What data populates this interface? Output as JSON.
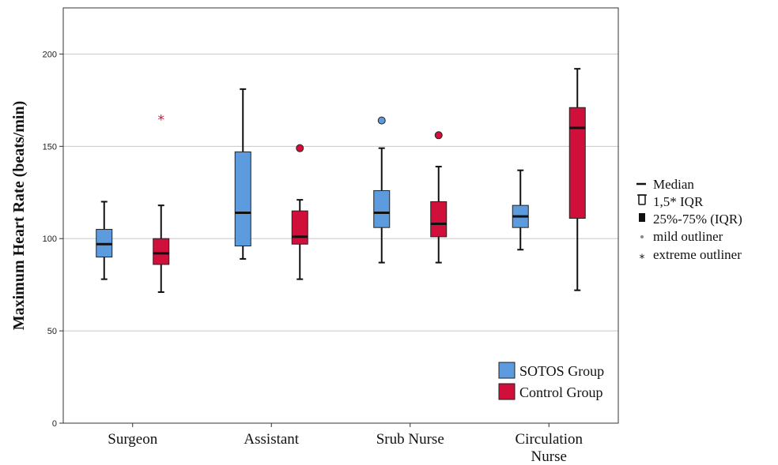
{
  "chart_data": {
    "type": "boxplot",
    "ylabel": "Maximum Heart Rate (beats/min)",
    "ylim": [
      0,
      225
    ],
    "yticks": [
      0,
      50,
      100,
      150,
      200
    ],
    "grid": "horizontal",
    "categories": [
      "Surgeon",
      "Assistant",
      "Srub Nurse",
      "Circulation Nurse"
    ],
    "category_lines": [
      [
        "Surgeon"
      ],
      [
        "Assistant"
      ],
      [
        "Srub Nurse"
      ],
      [
        "Circulation",
        "Nurse"
      ]
    ],
    "series": [
      {
        "name": "SOTOS Group",
        "color": "#5b9bde",
        "boxes": [
          {
            "whisker_low": 78,
            "q1": 90,
            "median": 97,
            "q3": 105,
            "whisker_high": 120,
            "mild_outliers": [],
            "extreme_outliers": []
          },
          {
            "whisker_low": 89,
            "q1": 96,
            "median": 114,
            "q3": 147,
            "whisker_high": 181,
            "mild_outliers": [],
            "extreme_outliers": []
          },
          {
            "whisker_low": 87,
            "q1": 106,
            "median": 114,
            "q3": 126,
            "whisker_high": 149,
            "mild_outliers": [
              164
            ],
            "extreme_outliers": []
          },
          {
            "whisker_low": 94,
            "q1": 106,
            "median": 112,
            "q3": 118,
            "whisker_high": 137,
            "mild_outliers": [],
            "extreme_outliers": []
          }
        ]
      },
      {
        "name": "Control Group",
        "color": "#d0103a",
        "boxes": [
          {
            "whisker_low": 71,
            "q1": 86,
            "median": 92,
            "q3": 100,
            "whisker_high": 118,
            "mild_outliers": [],
            "extreme_outliers": [
              165
            ]
          },
          {
            "whisker_low": 78,
            "q1": 97,
            "median": 101,
            "q3": 115,
            "whisker_high": 121,
            "mild_outliers": [
              149
            ],
            "extreme_outliers": []
          },
          {
            "whisker_low": 87,
            "q1": 101,
            "median": 108,
            "q3": 120,
            "whisker_high": 139,
            "mild_outliers": [
              156
            ],
            "extreme_outliers": []
          },
          {
            "whisker_low": 72,
            "q1": 111,
            "median": 160,
            "q3": 171,
            "whisker_high": 192,
            "mild_outliers": [],
            "extreme_outliers": []
          }
        ]
      }
    ],
    "legend": {
      "position": "bottom-right",
      "entries": [
        "SOTOS Group",
        "Control Group"
      ]
    },
    "key": {
      "position": "right",
      "entries": [
        "Median",
        "1,5* IQR",
        "25%-75% (IQR)",
        "mild outliner",
        "extreme outliner"
      ]
    }
  }
}
